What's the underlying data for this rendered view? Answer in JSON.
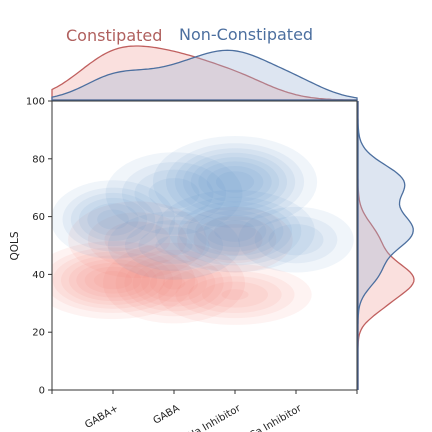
{
  "chart_data": {
    "type": "kde_joint",
    "title": "",
    "xlabel": "",
    "ylabel": "QOLS",
    "categories": [
      "GABA+",
      "GABA",
      "Na Inhibitor",
      "Ca Inhibitor"
    ],
    "x_positions": [
      1,
      2,
      3,
      4
    ],
    "xlim": [
      0,
      5
    ],
    "ylim": [
      0,
      100
    ],
    "yticks": [
      0,
      20,
      40,
      60,
      80,
      100
    ],
    "grid": false,
    "legend": "top",
    "series": [
      {
        "name": "Constipated",
        "color": "#c0605f",
        "fill": "#f2a6a0",
        "kde_components": [
          {
            "x": 1.0,
            "y": 38,
            "sx": 0.55,
            "sy": 5.5,
            "w": 1.0
          },
          {
            "x": 2.0,
            "y": 37,
            "sx": 0.5,
            "sy": 6,
            "w": 0.75
          },
          {
            "x": 3.0,
            "y": 33,
            "sx": 0.6,
            "sy": 5,
            "w": 0.45
          },
          {
            "x": 1.4,
            "y": 52,
            "sx": 0.6,
            "sy": 7,
            "w": 0.3
          },
          {
            "x": 3.0,
            "y": 52,
            "sx": 0.5,
            "sy": 6,
            "w": 0.3
          }
        ],
        "x_marginal": [
          {
            "m": 1.0,
            "s": 0.6,
            "w": 1.0
          },
          {
            "m": 2.0,
            "s": 0.6,
            "w": 0.8
          },
          {
            "m": 3.0,
            "s": 0.6,
            "w": 0.5
          }
        ],
        "y_marginal": [
          {
            "m": 38,
            "s": 6,
            "w": 1.0
          },
          {
            "m": 52,
            "s": 6,
            "w": 0.35
          },
          {
            "m": 28,
            "s": 4,
            "w": 0.2
          }
        ]
      },
      {
        "name": "Non-Constipated",
        "color": "#4c6f9f",
        "fill": "#9fb5d6",
        "kde_components": [
          {
            "x": 3.0,
            "y": 72,
            "sx": 0.55,
            "sy": 6.5,
            "w": 1.0
          },
          {
            "x": 3.0,
            "y": 55,
            "sx": 0.55,
            "sy": 6,
            "w": 0.85
          },
          {
            "x": 1.0,
            "y": 59,
            "sx": 0.45,
            "sy": 6,
            "w": 0.65
          },
          {
            "x": 2.0,
            "y": 68,
            "sx": 0.55,
            "sy": 7,
            "w": 0.4
          },
          {
            "x": 2.0,
            "y": 50,
            "sx": 0.55,
            "sy": 6,
            "w": 0.35
          },
          {
            "x": 4.0,
            "y": 52,
            "sx": 0.5,
            "sy": 6,
            "w": 0.3
          }
        ],
        "x_marginal": [
          {
            "m": 1.0,
            "s": 0.5,
            "w": 0.5
          },
          {
            "m": 2.0,
            "s": 0.6,
            "w": 0.55
          },
          {
            "m": 3.0,
            "s": 0.6,
            "w": 1.0
          },
          {
            "m": 4.0,
            "s": 0.5,
            "w": 0.35
          }
        ],
        "y_marginal": [
          {
            "m": 72,
            "s": 6,
            "w": 0.8
          },
          {
            "m": 55,
            "s": 7,
            "w": 1.0
          },
          {
            "m": 40,
            "s": 5,
            "w": 0.3
          }
        ]
      }
    ]
  }
}
